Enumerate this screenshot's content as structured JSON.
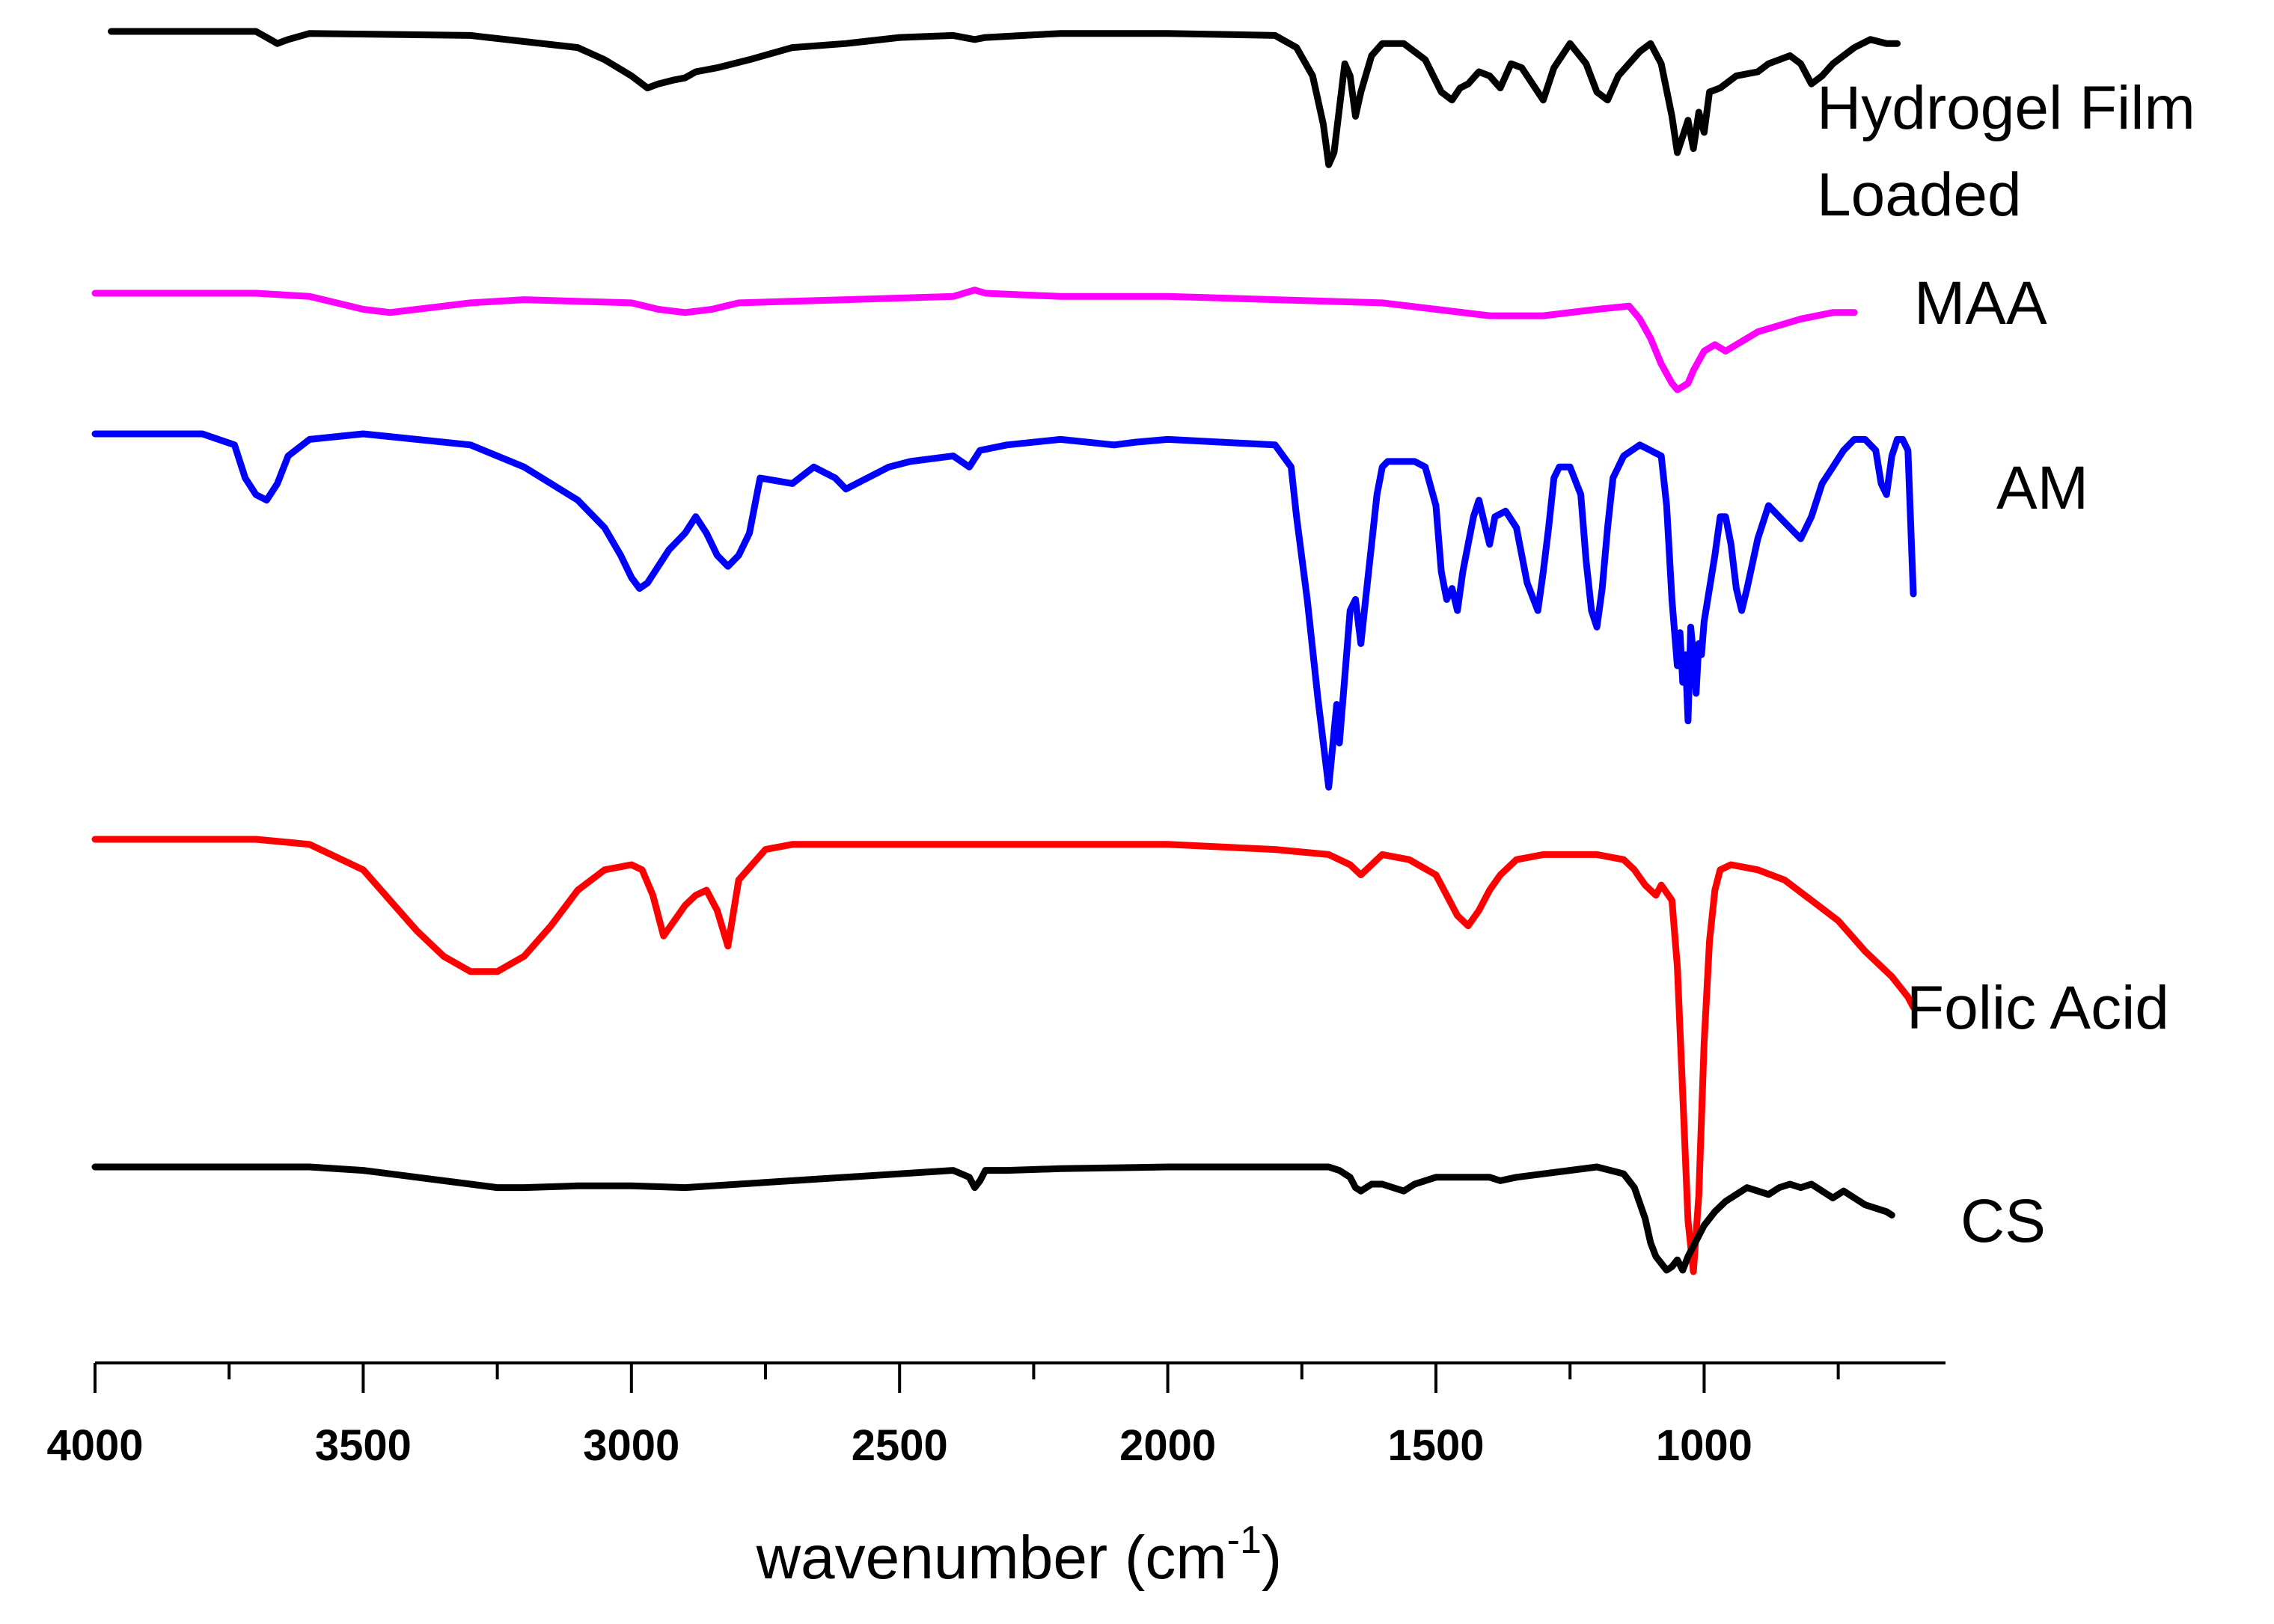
{
  "chart_data": {
    "type": "line",
    "title": "",
    "xlabel": "wavenumber (cm",
    "xlabel_superscript": "-1",
    "xlabel_close": ")",
    "ylabel": "",
    "xlim": [
      4000,
      550
    ],
    "x_ticks": [
      4000,
      3500,
      3000,
      2500,
      2000,
      1500,
      1000
    ],
    "x_tick_labels": [
      "4000",
      "3500",
      "3000",
      "2500",
      "2000",
      "1500",
      "1000"
    ],
    "minor_tick_step": 250,
    "grid": false,
    "legend": "labels placed right of each curve",
    "series": [
      {
        "name": "Hydrogel Film Loaded",
        "label_lines": [
          "Hydrogel Film",
          "Loaded"
        ],
        "color": "#000000",
        "offset": 0,
        "x": [
          3970,
          3700,
          3680,
          3660,
          3640,
          3600,
          3300,
          3100,
          3050,
          3000,
          2970,
          2950,
          2920,
          2900,
          2880,
          2840,
          2780,
          2700,
          2600,
          2500,
          2400,
          2360,
          2340,
          2200,
          2000,
          1800,
          1760,
          1730,
          1710,
          1700,
          1690,
          1680,
          1670,
          1660,
          1650,
          1640,
          1620,
          1600,
          1560,
          1520,
          1490,
          1470,
          1455,
          1440,
          1420,
          1400,
          1380,
          1360,
          1340,
          1320,
          1300,
          1280,
          1250,
          1220,
          1200,
          1180,
          1160,
          1120,
          1100,
          1080,
          1060,
          1050,
          1040,
          1030,
          1020,
          1010,
          1000,
          990,
          970,
          940,
          900,
          880,
          860,
          840,
          820,
          800,
          780,
          760,
          740,
          720,
          690,
          660,
          640
        ],
        "y": [
          0,
          0,
          3,
          6,
          4,
          1,
          2,
          8,
          14,
          22,
          28,
          26,
          24,
          23,
          20,
          18,
          14,
          8,
          6,
          3,
          2,
          4,
          3,
          1,
          1,
          2,
          8,
          22,
          46,
          66,
          60,
          38,
          16,
          22,
          42,
          30,
          12,
          6,
          6,
          14,
          30,
          34,
          28,
          26,
          20,
          22,
          28,
          16,
          18,
          26,
          34,
          18,
          6,
          16,
          30,
          34,
          22,
          10,
          6,
          16,
          42,
          60,
          52,
          44,
          58,
          40,
          50,
          30,
          28,
          22,
          20,
          16,
          14,
          12,
          16,
          26,
          22,
          16,
          12,
          8,
          4,
          6,
          6
        ]
      },
      {
        "name": "MAA",
        "label_lines": [
          "MAA"
        ],
        "color": "#ff00ff",
        "offset": 0,
        "x": [
          4000,
          3700,
          3600,
          3550,
          3500,
          3450,
          3400,
          3350,
          3300,
          3200,
          3000,
          2950,
          2900,
          2850,
          2800,
          2600,
          2400,
          2360,
          2340,
          2200,
          2000,
          1800,
          1600,
          1500,
          1400,
          1300,
          1200,
          1140,
          1120,
          1100,
          1080,
          1060,
          1050,
          1040,
          1030,
          1020,
          1000,
          980,
          960,
          940,
          920,
          900,
          860,
          820,
          760,
          720
        ],
        "y": [
          0,
          0,
          1,
          3,
          5,
          6,
          5,
          4,
          3,
          2,
          3,
          5,
          6,
          5,
          3,
          2,
          1,
          -1,
          0,
          1,
          1,
          2,
          3,
          5,
          7,
          7,
          5,
          4,
          8,
          14,
          22,
          28,
          30,
          29,
          28,
          24,
          18,
          16,
          18,
          16,
          14,
          12,
          10,
          8,
          6,
          6
        ]
      },
      {
        "name": "AM",
        "label_lines": [
          "AM"
        ],
        "color": "#0000ff",
        "offset": 0,
        "x": [
          4000,
          3800,
          3740,
          3720,
          3700,
          3680,
          3660,
          3640,
          3600,
          3500,
          3300,
          3200,
          3100,
          3050,
          3020,
          3000,
          2985,
          2970,
          2950,
          2930,
          2900,
          2880,
          2860,
          2840,
          2820,
          2800,
          2780,
          2760,
          2700,
          2660,
          2620,
          2600,
          2560,
          2520,
          2480,
          2400,
          2370,
          2350,
          2300,
          2200,
          2100,
          2060,
          2000,
          1800,
          1770,
          1760,
          1740,
          1720,
          1700,
          1695,
          1690,
          1685,
          1680,
          1670,
          1660,
          1650,
          1640,
          1630,
          1610,
          1600,
          1590,
          1570,
          1540,
          1520,
          1500,
          1490,
          1480,
          1470,
          1460,
          1450,
          1440,
          1430,
          1420,
          1410,
          1400,
          1390,
          1370,
          1350,
          1330,
          1310,
          1300,
          1290,
          1280,
          1270,
          1250,
          1230,
          1220,
          1210,
          1200,
          1190,
          1180,
          1170,
          1150,
          1120,
          1100,
          1080,
          1070,
          1060,
          1050,
          1045,
          1040,
          1035,
          1030,
          1025,
          1020,
          1015,
          1010,
          1005,
          1000,
          990,
          980,
          970,
          960,
          950,
          940,
          930,
          920,
          900,
          880,
          860,
          840,
          820,
          800,
          780,
          760,
          740,
          720,
          700,
          680,
          670,
          660,
          650,
          640,
          630,
          620,
          610
        ],
        "y": [
          0,
          0,
          4,
          16,
          22,
          24,
          18,
          8,
          2,
          0,
          4,
          12,
          24,
          34,
          44,
          52,
          56,
          54,
          48,
          42,
          36,
          30,
          36,
          44,
          48,
          44,
          36,
          16,
          18,
          12,
          16,
          20,
          16,
          12,
          10,
          8,
          12,
          6,
          4,
          2,
          4,
          3,
          2,
          4,
          12,
          30,
          60,
          96,
          128,
          118,
          108,
          98,
          112,
          88,
          64,
          60,
          76,
          58,
          22,
          12,
          10,
          10,
          10,
          12,
          26,
          50,
          60,
          56,
          64,
          50,
          40,
          30,
          24,
          32,
          40,
          30,
          28,
          34,
          54,
          64,
          50,
          34,
          16,
          12,
          12,
          22,
          46,
          64,
          70,
          56,
          34,
          16,
          8,
          4,
          6,
          8,
          26,
          60,
          84,
          72,
          90,
          80,
          104,
          70,
          80,
          94,
          76,
          80,
          68,
          56,
          44,
          30,
          30,
          40,
          56,
          64,
          56,
          38,
          26,
          30,
          34,
          38,
          30,
          18,
          12,
          6,
          2,
          2,
          6,
          18,
          22,
          8,
          2,
          2,
          6,
          58
        ]
      },
      {
        "name": "Folic Acid",
        "label_lines": [
          "Folic Acid"
        ],
        "color": "#ff0000",
        "offset": 0,
        "x": [
          4000,
          3700,
          3600,
          3500,
          3450,
          3400,
          3350,
          3300,
          3250,
          3200,
          3150,
          3100,
          3050,
          3000,
          2980,
          2960,
          2940,
          2920,
          2900,
          2880,
          2860,
          2840,
          2820,
          2800,
          2750,
          2700,
          2600,
          2400,
          2200,
          2000,
          1800,
          1700,
          1660,
          1640,
          1600,
          1550,
          1500,
          1480,
          1460,
          1440,
          1420,
          1400,
          1380,
          1350,
          1300,
          1200,
          1150,
          1130,
          1110,
          1090,
          1080,
          1060,
          1050,
          1040,
          1030,
          1020,
          1010,
          1000,
          990,
          980,
          970,
          950,
          900,
          850,
          800,
          750,
          700,
          650,
          620,
          610
        ],
        "y": [
          0,
          0,
          2,
          12,
          24,
          36,
          46,
          52,
          52,
          46,
          34,
          20,
          12,
          10,
          12,
          22,
          38,
          32,
          26,
          22,
          20,
          28,
          42,
          16,
          4,
          2,
          2,
          2,
          2,
          2,
          4,
          6,
          10,
          14,
          6,
          8,
          14,
          22,
          30,
          34,
          28,
          20,
          14,
          8,
          6,
          6,
          8,
          12,
          18,
          22,
          18,
          24,
          50,
          100,
          150,
          170,
          140,
          80,
          40,
          20,
          12,
          10,
          12,
          16,
          24,
          32,
          44,
          54,
          62,
          66
        ]
      },
      {
        "name": "CS",
        "label_lines": [
          "CS"
        ],
        "color": "#000000",
        "offset": 0,
        "x": [
          4000,
          3800,
          3600,
          3500,
          3400,
          3300,
          3250,
          3200,
          3100,
          3000,
          2900,
          2800,
          2600,
          2400,
          2370,
          2360,
          2350,
          2340,
          2300,
          2200,
          2000,
          1800,
          1700,
          1680,
          1660,
          1650,
          1640,
          1620,
          1600,
          1580,
          1560,
          1540,
          1520,
          1500,
          1450,
          1400,
          1380,
          1350,
          1300,
          1250,
          1200,
          1150,
          1130,
          1110,
          1100,
          1090,
          1080,
          1070,
          1060,
          1050,
          1040,
          1030,
          1020,
          1000,
          980,
          960,
          940,
          920,
          900,
          880,
          860,
          840,
          820,
          800,
          780,
          760,
          740,
          720,
          700,
          680,
          660,
          650
        ],
        "y": [
          0,
          0,
          0,
          2,
          6,
          10,
          12,
          12,
          11,
          11,
          12,
          10,
          6,
          2,
          6,
          12,
          8,
          2,
          2,
          1,
          0,
          0,
          0,
          2,
          6,
          12,
          14,
          10,
          10,
          12,
          14,
          10,
          8,
          6,
          6,
          6,
          8,
          6,
          4,
          2,
          0,
          4,
          12,
          30,
          44,
          52,
          56,
          60,
          58,
          54,
          60,
          52,
          46,
          34,
          26,
          20,
          16,
          12,
          14,
          16,
          12,
          10,
          12,
          10,
          14,
          18,
          14,
          18,
          22,
          24,
          26,
          28
        ]
      }
    ]
  }
}
